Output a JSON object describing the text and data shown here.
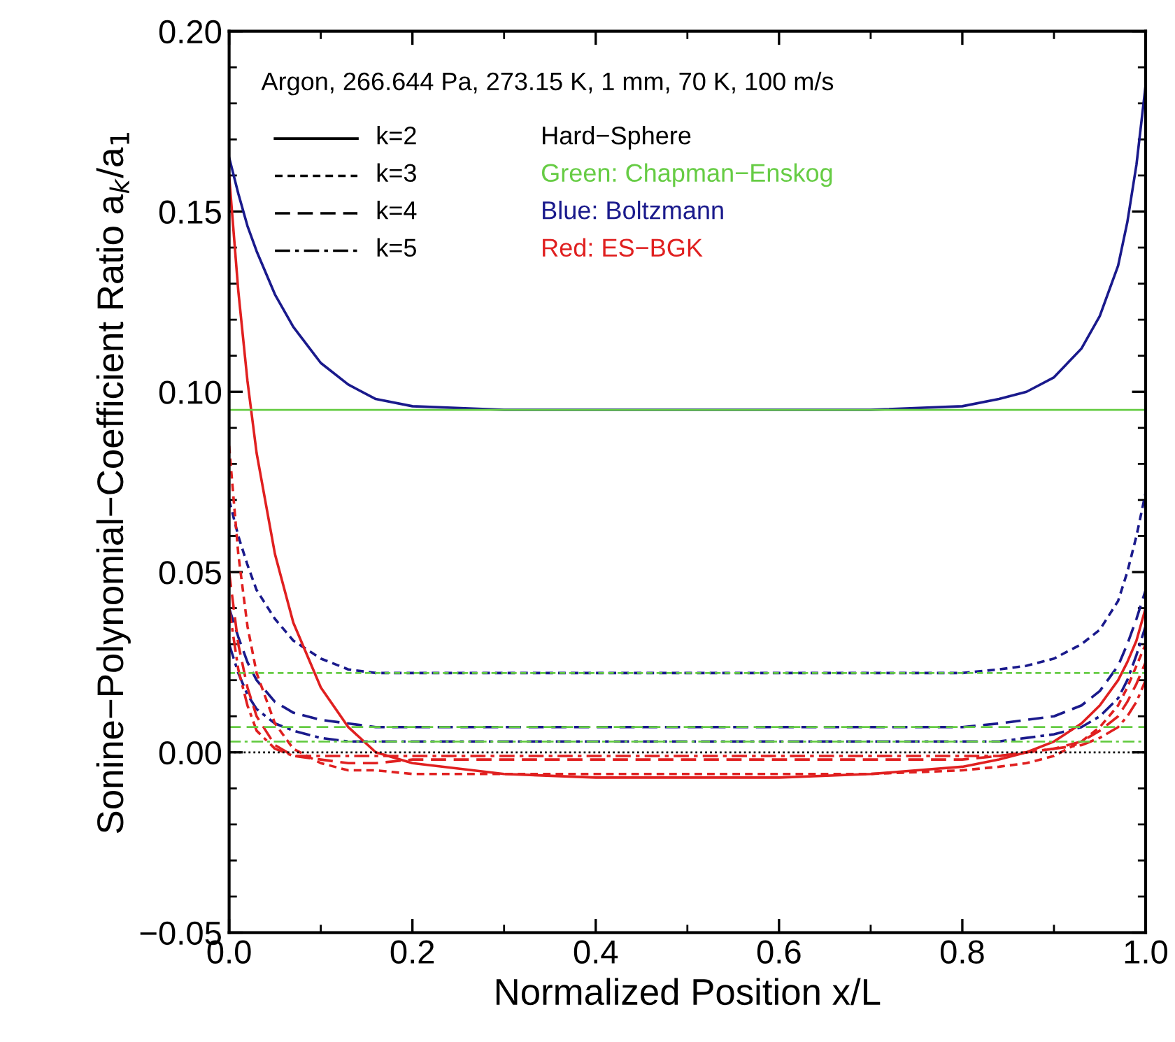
{
  "chart_data": {
    "type": "line",
    "xlabel": "Normalized Position x/L",
    "ylabel": "Sonine−Polynomial−Coefficient Ratio a$_{k}$/a$_{1}$",
    "x": [
      0,
      0.01,
      0.02,
      0.03,
      0.05,
      0.07,
      0.1,
      0.13,
      0.16,
      0.2,
      0.3,
      0.4,
      0.5,
      0.6,
      0.7,
      0.8,
      0.84,
      0.87,
      0.9,
      0.93,
      0.95,
      0.97,
      0.98,
      0.99,
      1.0
    ],
    "xlim": [
      0,
      1
    ],
    "xticks": [
      {
        "value": 0,
        "label": "0.0"
      },
      0.2,
      0.4,
      0.6,
      0.8,
      {
        "value": 1,
        "label": "1.0"
      }
    ],
    "ylim": [
      -0.05,
      0.2
    ],
    "yticks": [
      {
        "value": -0.05,
        "label": "−0.05"
      },
      {
        "value": 0,
        "label": "0.00"
      },
      0.05,
      {
        "value": 0.1,
        "label": "0.10"
      },
      0.15,
      {
        "value": 0.2,
        "label": "0.20"
      }
    ],
    "grid": false,
    "marker": "none",
    "annotations": [
      "Argon, 266.644 Pa, 273.15 K, 1 mm, 70 K, 100 m/s",
      "k=2",
      "k=3",
      "k=4",
      "k=5",
      "Hard−Sphere",
      "Green: Chapman−Enskog",
      "Blue: Boltzmann",
      "Red: ES−BGK"
    ],
    "ref_lines": [
      {
        "axis": "y",
        "value": 0.095,
        "color": "#66cc44",
        "line_style": "solid"
      },
      {
        "axis": "y",
        "value": 0.022,
        "color": "#66cc44",
        "line_style": "dashed"
      },
      {
        "axis": "y",
        "value": 0.007,
        "color": "#66cc44",
        "line_style": "longdash"
      },
      {
        "axis": "y",
        "value": 0.003,
        "color": "#66cc44",
        "line_style": "dashdot"
      },
      {
        "axis": "y",
        "value": 0,
        "color": "#000000",
        "line_style": "dotted"
      }
    ],
    "series": [
      {
        "color": "#1a1a8c",
        "line_style": "solid",
        "values": [
          0.165,
          0.155,
          0.146,
          0.139,
          0.127,
          0.118,
          0.108,
          0.102,
          0.098,
          0.096,
          0.095,
          0.095,
          0.095,
          0.095,
          0.095,
          0.096,
          0.098,
          0.1,
          0.104,
          0.112,
          0.121,
          0.135,
          0.147,
          0.163,
          0.185
        ]
      },
      {
        "color": "#1a1a8c",
        "line_style": "dashed",
        "values": [
          0.07,
          0.06,
          0.052,
          0.045,
          0.037,
          0.031,
          0.026,
          0.023,
          0.022,
          0.022,
          0.022,
          0.022,
          0.022,
          0.022,
          0.022,
          0.022,
          0.023,
          0.024,
          0.026,
          0.03,
          0.034,
          0.042,
          0.05,
          0.06,
          0.072
        ]
      },
      {
        "color": "#1a1a8c",
        "line_style": "longdash",
        "values": [
          0.04,
          0.032,
          0.025,
          0.02,
          0.014,
          0.011,
          0.009,
          0.008,
          0.007,
          0.007,
          0.007,
          0.007,
          0.007,
          0.007,
          0.007,
          0.007,
          0.008,
          0.009,
          0.01,
          0.013,
          0.017,
          0.024,
          0.03,
          0.037,
          0.045
        ]
      },
      {
        "color": "#1a1a8c",
        "line_style": "dashdot",
        "values": [
          0.03,
          0.022,
          0.016,
          0.012,
          0.008,
          0.006,
          0.004,
          0.003,
          0.003,
          0.003,
          0.003,
          0.003,
          0.003,
          0.003,
          0.003,
          0.003,
          0.003,
          0.004,
          0.005,
          0.007,
          0.01,
          0.015,
          0.02,
          0.027,
          0.035
        ]
      },
      {
        "color": "#e02020",
        "line_style": "solid",
        "values": [
          0.16,
          0.128,
          0.103,
          0.083,
          0.055,
          0.036,
          0.018,
          0.007,
          0.0,
          -0.003,
          -0.006,
          -0.007,
          -0.007,
          -0.007,
          -0.006,
          -0.004,
          -0.002,
          0.0,
          0.003,
          0.008,
          0.013,
          0.02,
          0.025,
          0.031,
          0.04
        ]
      },
      {
        "color": "#e02020",
        "line_style": "dashed",
        "values": [
          0.085,
          0.055,
          0.035,
          0.022,
          0.008,
          0.001,
          -0.003,
          -0.005,
          -0.005,
          -0.006,
          -0.006,
          -0.006,
          -0.006,
          -0.006,
          -0.006,
          -0.005,
          -0.004,
          -0.003,
          -0.001,
          0.003,
          0.007,
          0.013,
          0.018,
          0.024,
          0.03
        ]
      },
      {
        "color": "#e02020",
        "line_style": "longdash",
        "values": [
          0.05,
          0.03,
          0.018,
          0.01,
          0.002,
          -0.001,
          -0.002,
          -0.003,
          -0.003,
          -0.002,
          -0.002,
          -0.002,
          -0.002,
          -0.002,
          -0.002,
          -0.002,
          -0.001,
          0.0,
          0.001,
          0.003,
          0.006,
          0.01,
          0.014,
          0.019,
          0.025
        ]
      },
      {
        "color": "#e02020",
        "line_style": "dashdot",
        "values": [
          0.04,
          0.023,
          0.013,
          0.006,
          0.001,
          -0.001,
          -0.001,
          -0.001,
          -0.001,
          -0.001,
          -0.001,
          -0.001,
          -0.001,
          -0.001,
          -0.001,
          -0.001,
          -0.001,
          0.0,
          0.001,
          0.002,
          0.004,
          0.007,
          0.01,
          0.014,
          0.02
        ]
      }
    ]
  }
}
